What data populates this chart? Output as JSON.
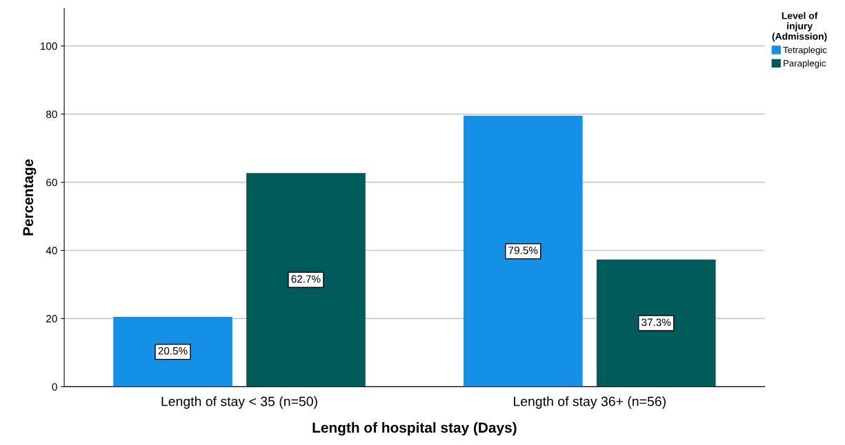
{
  "chart_data": {
    "type": "bar",
    "xlabel": "Length of hospital stay (Days)",
    "ylabel": "Percentage",
    "categories": [
      "Length of stay < 35 (n=50)",
      "Length of stay 36+ (n=56)"
    ],
    "series": [
      {
        "name": "Tetraplegic",
        "color": "#1490e6",
        "values": [
          20.5,
          79.5
        ],
        "value_labels": [
          "20.5%",
          "79.5%"
        ]
      },
      {
        "name": "Paraplegic",
        "color": "#005c5a",
        "values": [
          62.7,
          37.3
        ],
        "value_labels": [
          "62.7%",
          "37.3%"
        ]
      }
    ],
    "legend_title": "Level of\ninjury\n(Admission)",
    "legend": "top right",
    "ylim": [
      0,
      111
    ],
    "yticks": [
      0,
      20,
      40,
      60,
      80,
      100
    ],
    "grid": "y"
  }
}
